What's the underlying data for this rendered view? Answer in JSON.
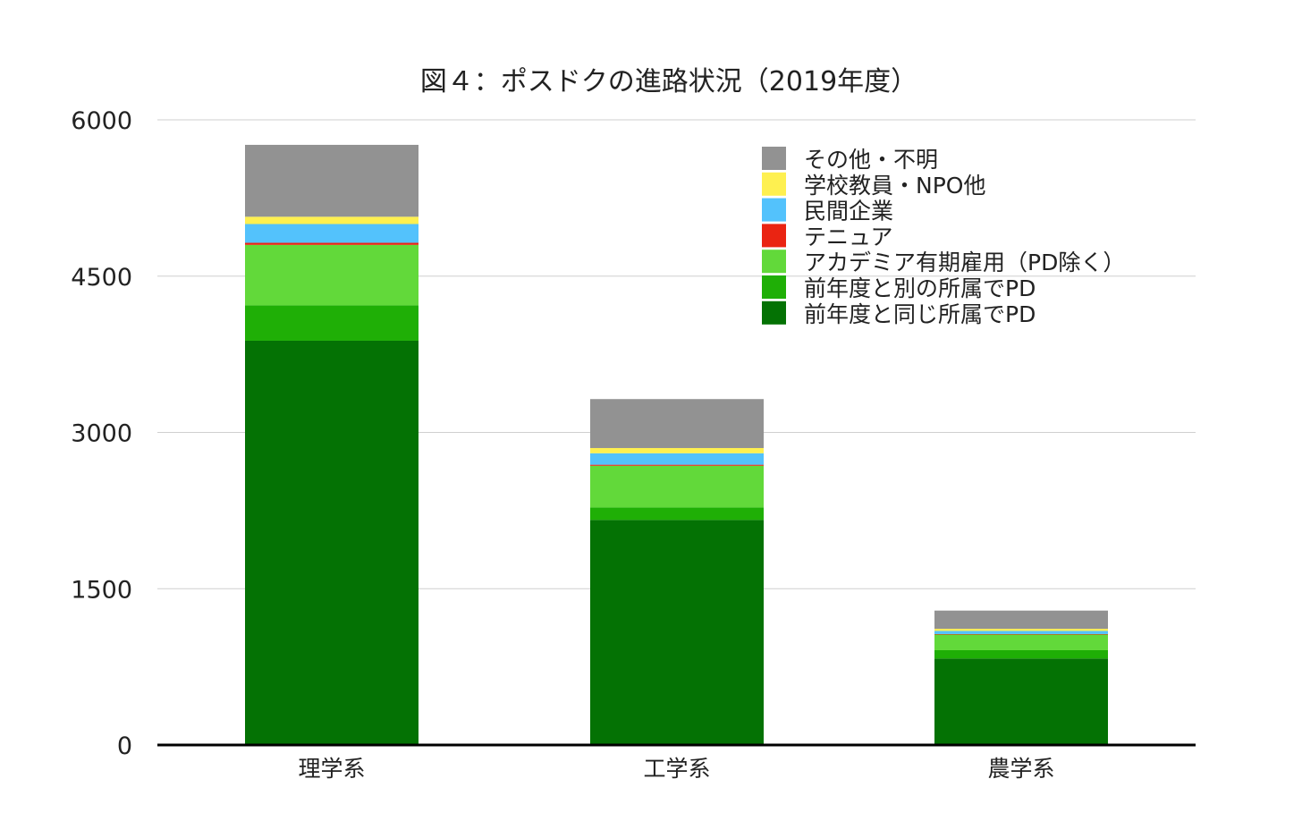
{
  "chart_data": {
    "type": "bar",
    "stacked": true,
    "title": "図４：ポスドクの進路状況（2019年度）",
    "xlabel": "",
    "ylabel": "",
    "ylim": [
      0,
      6000
    ],
    "yticks": [
      "0",
      "1500",
      "3000",
      "4500",
      "6000"
    ],
    "yticks_values": [
      0,
      1500,
      3000,
      4500,
      6000
    ],
    "grid": true,
    "legend_position": "top-right",
    "categories": [
      "理学系",
      "工学系",
      "農学系"
    ],
    "series": [
      {
        "name": "前年度と同じ所属でPD",
        "color": "#047204",
        "values": [
          3880,
          2160,
          830
        ]
      },
      {
        "name": "前年度と別の所属でPD",
        "color": "#1faf06",
        "values": [
          340,
          120,
          80
        ]
      },
      {
        "name": "アカデミア有期雇用（PD除く）",
        "color": "#62d93a",
        "values": [
          580,
          400,
          150
        ]
      },
      {
        "name": "テニュア",
        "color": "#ea2412",
        "values": [
          20,
          10,
          5
        ]
      },
      {
        "name": "民間企業",
        "color": "#53c2fc",
        "values": [
          180,
          110,
          30
        ]
      },
      {
        "name": "学校教員・NPO他",
        "color": "#fef050",
        "values": [
          70,
          50,
          20
        ]
      },
      {
        "name": "その他・不明",
        "color": "#929292",
        "values": [
          690,
          470,
          175
        ]
      }
    ],
    "legend_order": [
      6,
      5,
      4,
      3,
      2,
      1,
      0
    ]
  }
}
